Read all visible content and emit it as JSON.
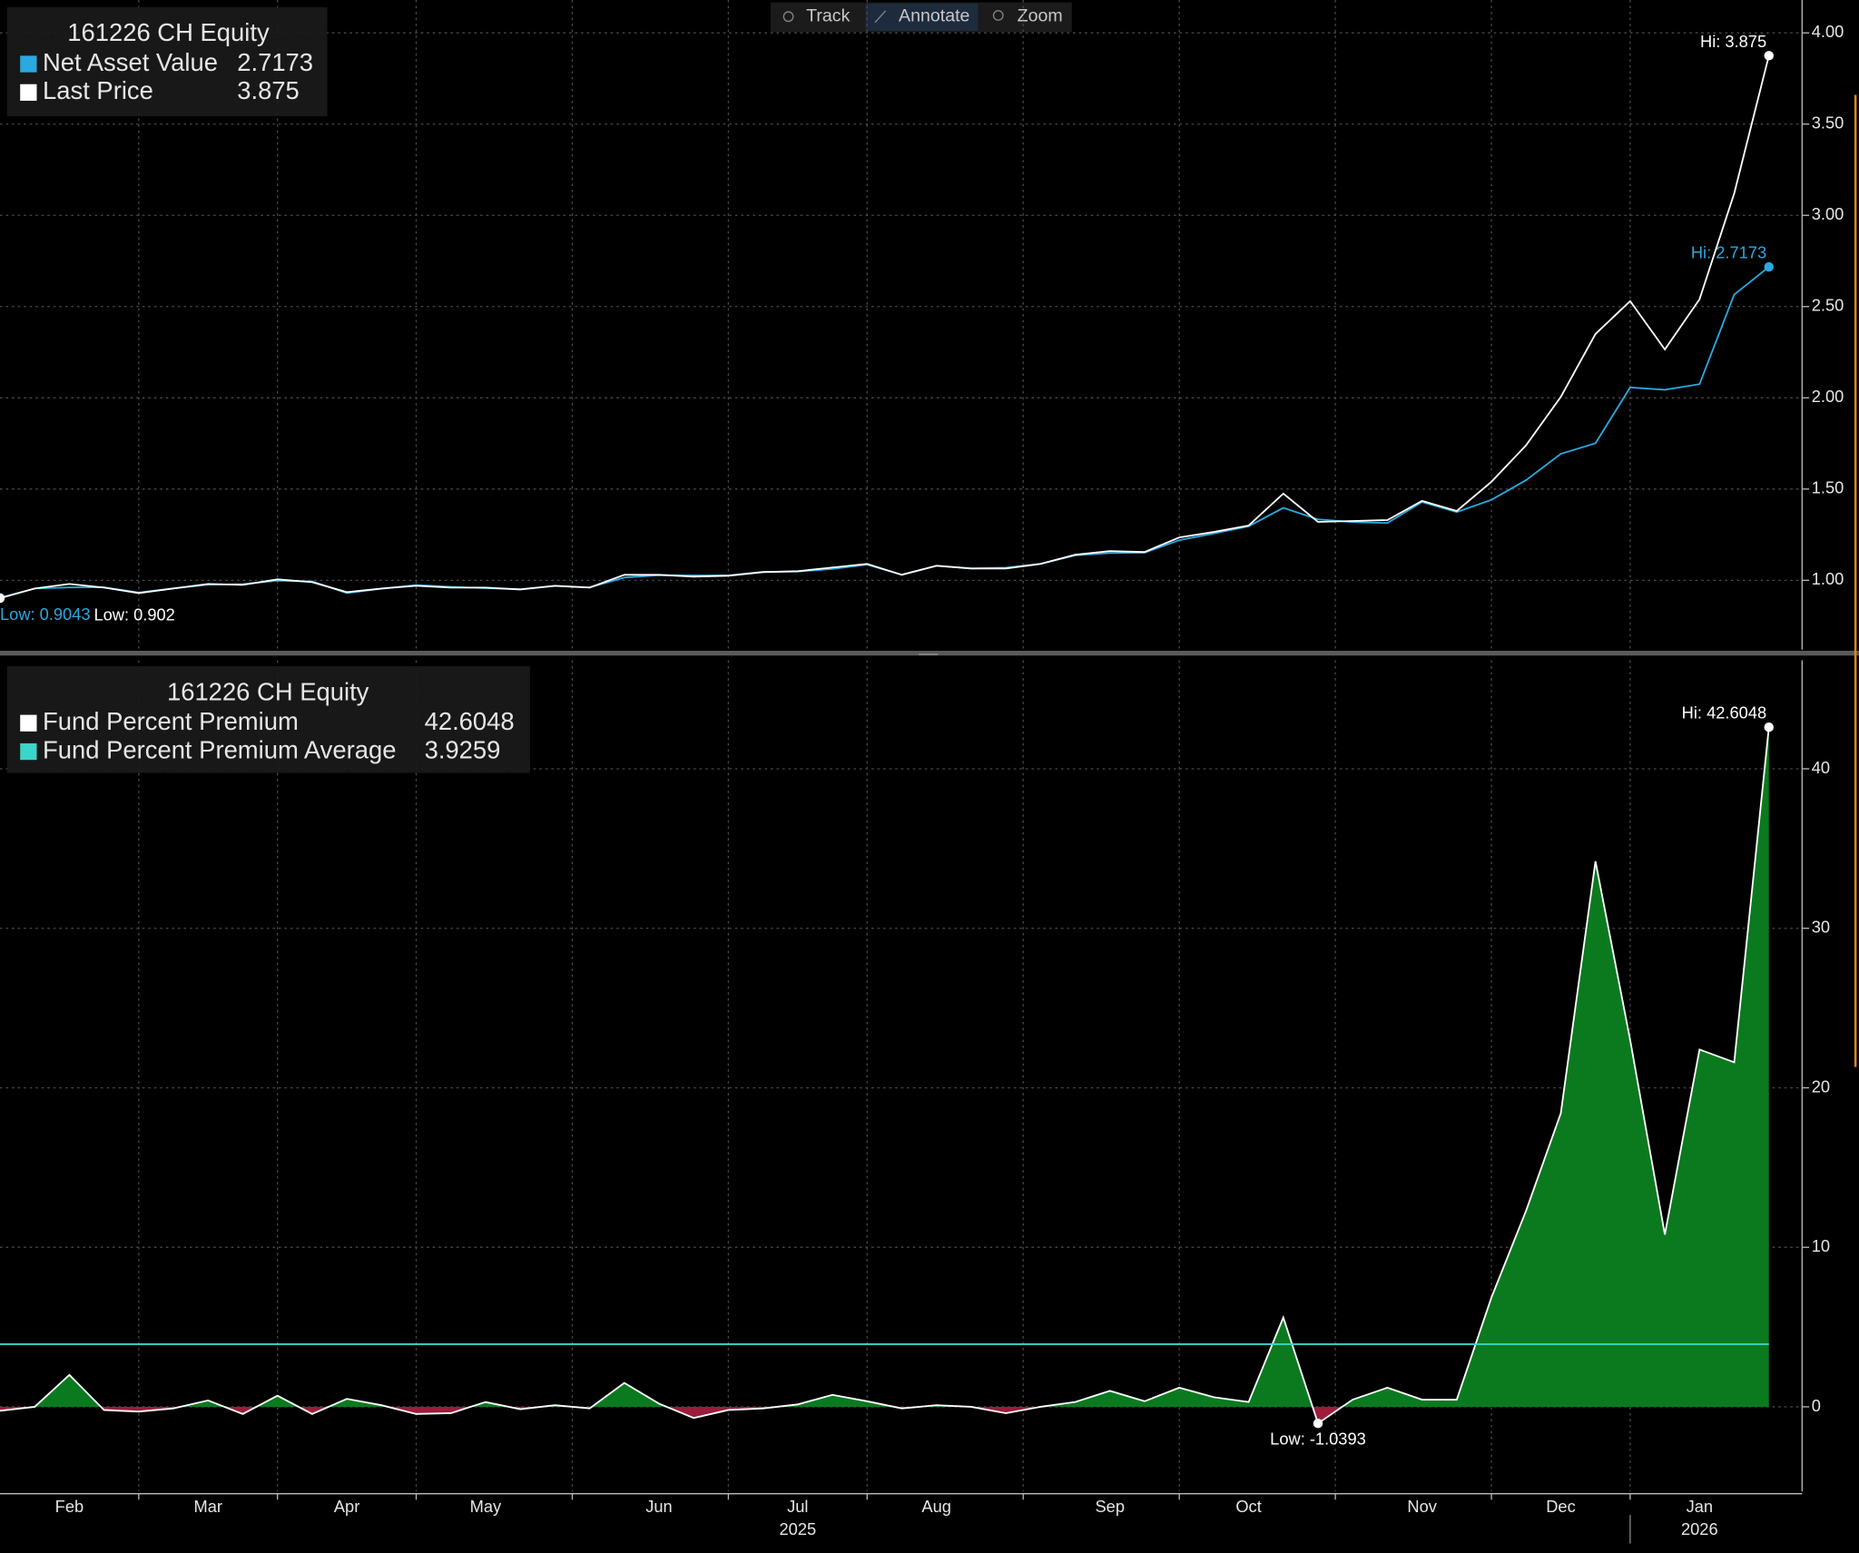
{
  "toolbar": [
    {
      "label": "Track"
    },
    {
      "label": "Annotate"
    },
    {
      "label": "Zoom"
    }
  ],
  "chart_data": [
    {
      "type": "line",
      "title": "161226 CH Equity",
      "series": [
        {
          "name": "Net Asset Value",
          "color": "#2aa9e0",
          "hi_label": "Hi: 2.7173",
          "low_label": "Low: 0.9043",
          "values": [
            0.9043,
            0.955,
            0.961,
            0.962,
            0.933,
            0.956,
            0.976,
            0.979,
            0.998,
            0.994,
            0.93,
            0.954,
            0.974,
            0.964,
            0.957,
            0.951,
            0.969,
            0.961,
            1.015,
            1.028,
            1.027,
            1.027,
            1.046,
            1.048,
            1.062,
            1.086,
            1.031,
            1.079,
            1.065,
            1.069,
            1.09,
            1.137,
            1.149,
            1.151,
            1.22,
            1.257,
            1.296,
            1.397,
            1.334,
            1.319,
            1.314,
            1.429,
            1.374,
            1.441,
            1.549,
            1.693,
            1.751,
            2.057,
            2.044,
            2.075,
            2.566,
            2.7173
          ]
        },
        {
          "name": "Last Price",
          "color": "#ffffff",
          "hi_label": "Hi: 3.875",
          "low_label": "Low: 0.902",
          "values": [
            0.902,
            0.955,
            0.98,
            0.96,
            0.93,
            0.955,
            0.98,
            0.975,
            1.005,
            0.99,
            0.935,
            0.955,
            0.97,
            0.96,
            0.96,
            0.95,
            0.97,
            0.96,
            1.03,
            1.03,
            1.02,
            1.025,
            1.045,
            1.05,
            1.07,
            1.09,
            1.03,
            1.08,
            1.065,
            1.065,
            1.09,
            1.14,
            1.16,
            1.155,
            1.235,
            1.265,
            1.3,
            1.475,
            1.32,
            1.325,
            1.33,
            1.435,
            1.38,
            1.54,
            1.74,
            2.005,
            2.35,
            2.53,
            2.265,
            2.54,
            3.12,
            3.875
          ]
        }
      ],
      "ylim": [
        0.62,
        4.18
      ],
      "yticks": [
        {
          "value": 1,
          "label": "1.00"
        },
        {
          "value": 1.5,
          "label": "1.50"
        },
        {
          "value": 2,
          "label": "2.00"
        },
        {
          "value": 2.5,
          "label": "2.50"
        },
        {
          "value": 3,
          "label": "3.00"
        },
        {
          "value": 3.5,
          "label": "3.50"
        },
        {
          "value": 4,
          "label": "4.00"
        }
      ],
      "grid": true
    },
    {
      "type": "area",
      "title": "161226 CH Equity",
      "categories": [
        null,
        null,
        "Feb",
        null,
        null,
        null,
        "Mar",
        null,
        null,
        null,
        "Apr",
        null,
        null,
        null,
        "May",
        null,
        null,
        null,
        null,
        "Jun",
        null,
        null,
        null,
        "Jul",
        null,
        null,
        null,
        "Aug",
        null,
        null,
        null,
        null,
        "Sep",
        null,
        null,
        null,
        "Oct",
        null,
        null,
        null,
        null,
        "Nov",
        null,
        null,
        null,
        "Dec",
        null,
        null,
        null,
        "Jan",
        null,
        null
      ],
      "category_groups": [
        null,
        null,
        null,
        null,
        null,
        null,
        null,
        null,
        null,
        null,
        null,
        null,
        null,
        null,
        null,
        null,
        null,
        null,
        null,
        null,
        null,
        null,
        null,
        "2025",
        null,
        null,
        null,
        null,
        null,
        null,
        null,
        null,
        null,
        null,
        null,
        null,
        null,
        null,
        null,
        null,
        null,
        null,
        null,
        null,
        null,
        null,
        null,
        null,
        null,
        "2026",
        null,
        null
      ],
      "series": [
        {
          "name": "Fund Percent Premium",
          "color": "#ffffff",
          "fill_positive": "#0b7a1f",
          "fill_negative": "#9c1c3a",
          "hi_label": "Hi: 42.6048",
          "low_label": "Low: -1.0393",
          "values": [
            -0.25,
            0,
            2.0,
            -0.2,
            -0.3,
            -0.1,
            0.4,
            -0.45,
            0.7,
            -0.45,
            0.5,
            0.1,
            -0.45,
            -0.4,
            0.3,
            -0.15,
            0.1,
            -0.1,
            1.5,
            0.2,
            -0.7,
            -0.2,
            -0.1,
            0.15,
            0.75,
            0.35,
            -0.1,
            0.1,
            0,
            -0.4,
            0,
            0.3,
            1.0,
            0.35,
            1.2,
            0.6,
            0.3,
            5.6,
            -1.0393,
            0.45,
            1.2,
            0.45,
            0.45,
            6.85,
            12.3,
            18.4,
            34.2,
            23.0,
            10.8,
            22.4,
            21.6,
            42.6048
          ]
        },
        {
          "name": "Fund Percent Premium Average",
          "color": "#3ad6c8",
          "value": 3.9259
        }
      ],
      "ylim": [
        -5.3,
        46.8
      ],
      "yticks": [
        0,
        10,
        20,
        30,
        40
      ],
      "grid": true
    }
  ]
}
